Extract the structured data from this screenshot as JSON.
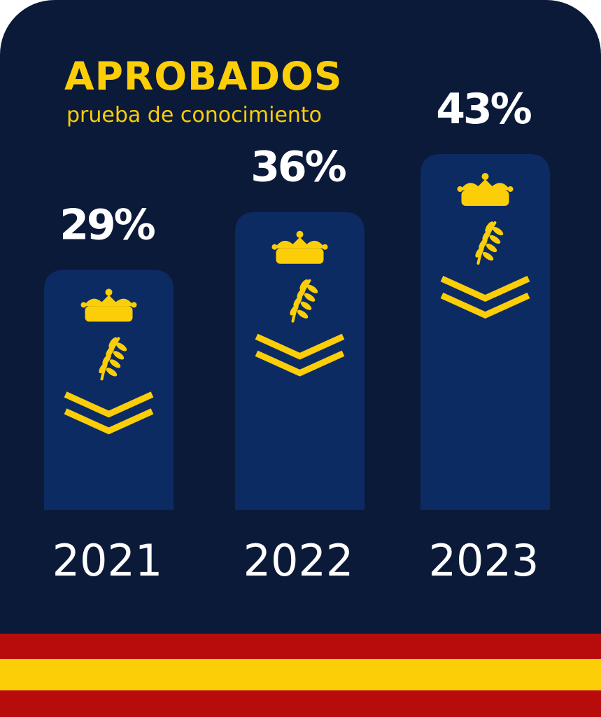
{
  "title": "APROBADOS",
  "subtitle": "prueba de conocimiento",
  "colors": {
    "background": "#0c1a3a",
    "bar": "#0c2b63",
    "accent": "#fbce07",
    "text": "#ffffff",
    "flag_red": "#b80c0c",
    "flag_yellow": "#fbce07"
  },
  "chart_data": {
    "type": "bar",
    "categories": [
      "2021",
      "2022",
      "2023"
    ],
    "values": [
      29,
      36,
      43
    ],
    "value_labels": [
      "29%",
      "36%",
      "43%"
    ],
    "ylim": [
      0,
      43
    ],
    "grid": false,
    "icon": "rank-insignia-icon"
  }
}
